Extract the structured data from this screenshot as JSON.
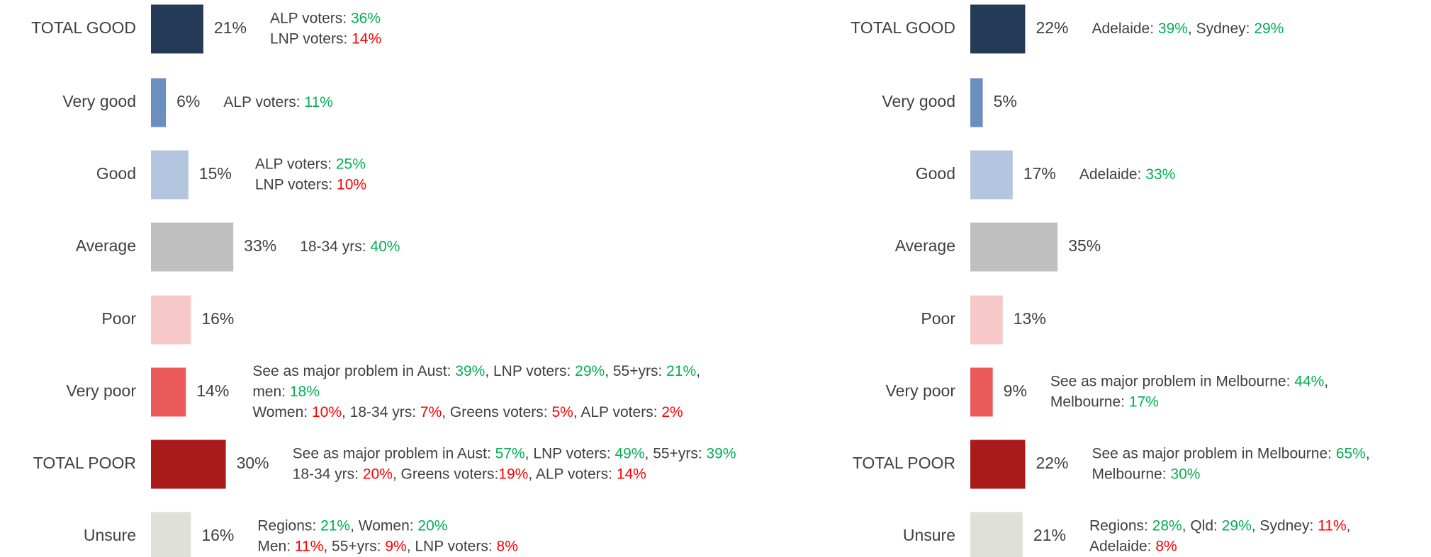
{
  "chart_data": [
    {
      "type": "bar",
      "orientation": "horizontal",
      "categories": [
        "TOTAL GOOD",
        "Very good",
        "Good",
        "Average",
        "Poor",
        "Very poor",
        "TOTAL POOR",
        "Unsure"
      ],
      "values": [
        21,
        6,
        15,
        33,
        16,
        14,
        30,
        16
      ],
      "value_labels": [
        "21%",
        "6%",
        "15%",
        "33%",
        "16%",
        "14%",
        "30%",
        "16%"
      ],
      "colors": [
        "#243a56",
        "#6b8fbf",
        "#b4c6df",
        "#bfbfbf",
        "#f7c8c8",
        "#eb5b5b",
        "#ab1a1a",
        "#e0e0da"
      ],
      "annotations": [
        [
          [
            {
              "text": "ALP voters: "
            },
            {
              "text": "36%",
              "color": "#00b050"
            }
          ],
          [
            {
              "text": "LNP voters: "
            },
            {
              "text": "14%",
              "color": "#ff0000"
            }
          ]
        ],
        [
          [
            {
              "text": "ALP voters: "
            },
            {
              "text": "11%",
              "color": "#00b050"
            }
          ]
        ],
        [
          [
            {
              "text": "ALP voters: "
            },
            {
              "text": "25%",
              "color": "#00b050"
            }
          ],
          [
            {
              "text": "LNP voters: "
            },
            {
              "text": "10%",
              "color": "#ff0000"
            }
          ]
        ],
        [
          [
            {
              "text": "18-34 yrs: "
            },
            {
              "text": "40%",
              "color": "#00b050"
            }
          ]
        ],
        null,
        [
          [
            {
              "text": "See as major problem in Aust: "
            },
            {
              "text": "39%",
              "color": "#00b050"
            },
            {
              "text": ", LNP voters: "
            },
            {
              "text": "29%",
              "color": "#00b050"
            },
            {
              "text": ", 55+yrs: "
            },
            {
              "text": "21%",
              "color": "#00b050"
            },
            {
              "text": ","
            }
          ],
          [
            {
              "text": "men: "
            },
            {
              "text": "18%",
              "color": "#00b050"
            }
          ],
          [
            {
              "text": "Women: "
            },
            {
              "text": "10%",
              "color": "#ff0000"
            },
            {
              "text": ", 18-34 yrs: "
            },
            {
              "text": "7%",
              "color": "#ff0000"
            },
            {
              "text": ", Greens voters: "
            },
            {
              "text": "5%",
              "color": "#ff0000"
            },
            {
              "text": ", ALP voters: "
            },
            {
              "text": "2%",
              "color": "#ff0000"
            }
          ]
        ],
        [
          [
            {
              "text": "See as major problem in Aust: "
            },
            {
              "text": "57%",
              "color": "#00b050"
            },
            {
              "text": ", LNP voters: "
            },
            {
              "text": "49%",
              "color": "#00b050"
            },
            {
              "text": ", 55+yrs: "
            },
            {
              "text": "39%",
              "color": "#00b050"
            }
          ],
          [
            {
              "text": "18-34 yrs: "
            },
            {
              "text": "20%",
              "color": "#ff0000"
            },
            {
              "text": ", Greens voters:"
            },
            {
              "text": "19%",
              "color": "#ff0000"
            },
            {
              "text": ", ALP voters: "
            },
            {
              "text": "14%",
              "color": "#ff0000"
            }
          ]
        ],
        [
          [
            {
              "text": "Regions: "
            },
            {
              "text": "21%",
              "color": "#00b050"
            },
            {
              "text": ", Women: "
            },
            {
              "text": "20%",
              "color": "#00b050"
            }
          ],
          [
            {
              "text": "Men: "
            },
            {
              "text": "11%",
              "color": "#ff0000"
            },
            {
              "text": ", 55+yrs: "
            },
            {
              "text": "9%",
              "color": "#ff0000"
            },
            {
              "text": ", LNP voters: "
            },
            {
              "text": "8%",
              "color": "#ff0000"
            }
          ]
        ]
      ]
    },
    {
      "type": "bar",
      "orientation": "horizontal",
      "categories": [
        "TOTAL GOOD",
        "Very good",
        "Good",
        "Average",
        "Poor",
        "Very poor",
        "TOTAL POOR",
        "Unsure"
      ],
      "values": [
        22,
        5,
        17,
        35,
        13,
        9,
        22,
        21
      ],
      "value_labels": [
        "22%",
        "5%",
        "17%",
        "35%",
        "13%",
        "9%",
        "22%",
        "21%"
      ],
      "colors": [
        "#243a56",
        "#6b8fbf",
        "#b4c6df",
        "#bfbfbf",
        "#f7c8c8",
        "#eb5b5b",
        "#ab1a1a",
        "#e0e0da"
      ],
      "annotations": [
        [
          [
            {
              "text": "Adelaide: "
            },
            {
              "text": "39%",
              "color": "#00b050"
            },
            {
              "text": ", Sydney: "
            },
            {
              "text": "29%",
              "color": "#00b050"
            }
          ]
        ],
        null,
        [
          [
            {
              "text": "Adelaide: "
            },
            {
              "text": "33%",
              "color": "#00b050"
            }
          ]
        ],
        null,
        null,
        [
          [
            {
              "text": "See as major problem in Melbourne: "
            },
            {
              "text": "44%",
              "color": "#00b050"
            },
            {
              "text": ","
            }
          ],
          [
            {
              "text": "Melbourne: "
            },
            {
              "text": "17%",
              "color": "#00b050"
            }
          ]
        ],
        [
          [
            {
              "text": "See as major problem in Melbourne: "
            },
            {
              "text": "65%",
              "color": "#00b050"
            },
            {
              "text": ","
            }
          ],
          [
            {
              "text": "Melbourne: "
            },
            {
              "text": "30%",
              "color": "#00b050"
            }
          ]
        ],
        [
          [
            {
              "text": "Regions: "
            },
            {
              "text": "28%",
              "color": "#00b050"
            },
            {
              "text": ", Qld: "
            },
            {
              "text": "29%",
              "color": "#00b050"
            },
            {
              "text": ", Sydney: "
            },
            {
              "text": "11%",
              "color": "#ff0000"
            },
            {
              "text": ","
            }
          ],
          [
            {
              "text": "Adelaide: "
            },
            {
              "text": "8%",
              "color": "#ff0000"
            }
          ]
        ]
      ]
    }
  ]
}
